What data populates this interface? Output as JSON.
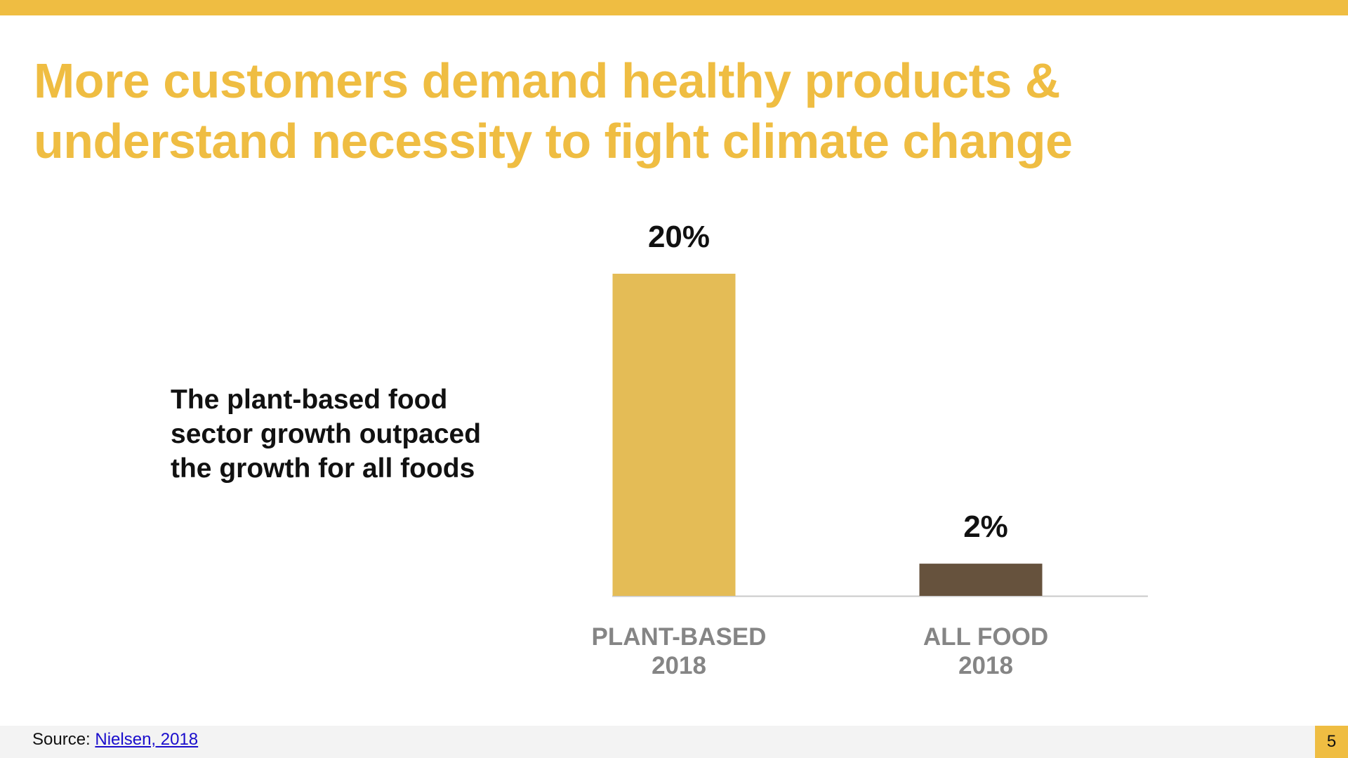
{
  "slide": {
    "title_lines": [
      "More customers demand healthy products &",
      "understand necessity to fight climate change"
    ],
    "callout_lines": [
      "The plant-based food",
      "sector growth outpaced",
      "the growth for all foods"
    ],
    "source_prefix": "Source:",
    "source_link": "Nielsen, 2018",
    "page_number": "5"
  },
  "colors": {
    "accent": "#efbd42",
    "bar_plant_based": "#e4bc56",
    "bar_all_food": "#66523d",
    "axis": "#c9c9c9"
  },
  "chart_data": {
    "type": "bar",
    "categories": [
      [
        "PLANT-BASED",
        "2018"
      ],
      [
        "ALL FOOD",
        "2018"
      ]
    ],
    "values": [
      20,
      2
    ],
    "value_labels": [
      "20%",
      "2%"
    ],
    "unit": "%",
    "title": "",
    "xlabel": "",
    "ylabel": "",
    "ylim": [
      0,
      20
    ],
    "grid": false,
    "legend": "none"
  }
}
